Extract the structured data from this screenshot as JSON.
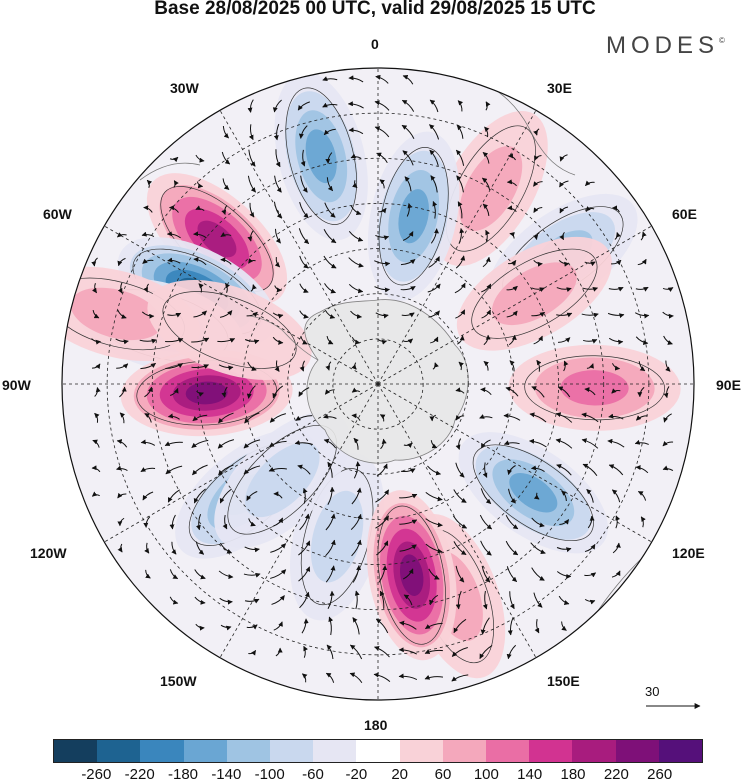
{
  "title": "Base 28/08/2025 00 UTC, valid 29/08/2025 15 UTC",
  "brand": "MODES",
  "brand_mark": "©",
  "lon_labels": {
    "n0": "0",
    "n30e": "30E",
    "n60e": "60E",
    "n90e": "90E",
    "n120e": "120E",
    "n150e": "150E",
    "n180": "180",
    "n150w": "150W",
    "n120w": "120W",
    "n90w": "90W",
    "n60w": "60W",
    "n30w": "30W"
  },
  "reference_vector": {
    "value": "30"
  },
  "colorbar": {
    "colors": [
      "#143e5e",
      "#1e6391",
      "#3a86bd",
      "#6aa6d3",
      "#9fc4e3",
      "#c9d8ee",
      "#e6e6f3",
      "#ffffff",
      "#f9d2d8",
      "#f4a8bc",
      "#ea6ea5",
      "#d23391",
      "#a81c7e",
      "#7e1078",
      "#55107a"
    ],
    "tick_labels": [
      "-260",
      "-220",
      "-180",
      "-140",
      "-100",
      "-60",
      "-20",
      "20",
      "60",
      "100",
      "140",
      "180",
      "220",
      "260"
    ]
  },
  "anomaly_blobs": [
    {
      "lat": -38,
      "lon": -14,
      "value": -140
    },
    {
      "lat": -42,
      "lon": -48,
      "value": 180
    },
    {
      "lat": -45,
      "lon": -63,
      "value": -230
    },
    {
      "lat": -40,
      "lon": -75,
      "value": -60
    },
    {
      "lat": -52,
      "lon": -93,
      "value": 220
    },
    {
      "lat": -52,
      "lon": -130,
      "value": -140
    },
    {
      "lat": -55,
      "lon": -165,
      "value": -60
    },
    {
      "lat": -40,
      "lon": 160,
      "value": 60
    },
    {
      "lat": -47,
      "lon": 170,
      "value": 250
    },
    {
      "lat": -48,
      "lon": 125,
      "value": -170
    },
    {
      "lat": -42,
      "lon": 91,
      "value": 130
    },
    {
      "lat": -40,
      "lon": 55,
      "value": -120
    },
    {
      "lat": -40,
      "lon": 30,
      "value": 90
    },
    {
      "lat": -52,
      "lon": 12,
      "value": -160
    },
    {
      "lat": -50,
      "lon": 60,
      "value": 60
    },
    {
      "lat": -30,
      "lon": -75,
      "value": 60
    },
    {
      "lat": -55,
      "lon": -70,
      "value": 20
    },
    {
      "lat": -60,
      "lon": -135,
      "value": -60
    }
  ]
}
